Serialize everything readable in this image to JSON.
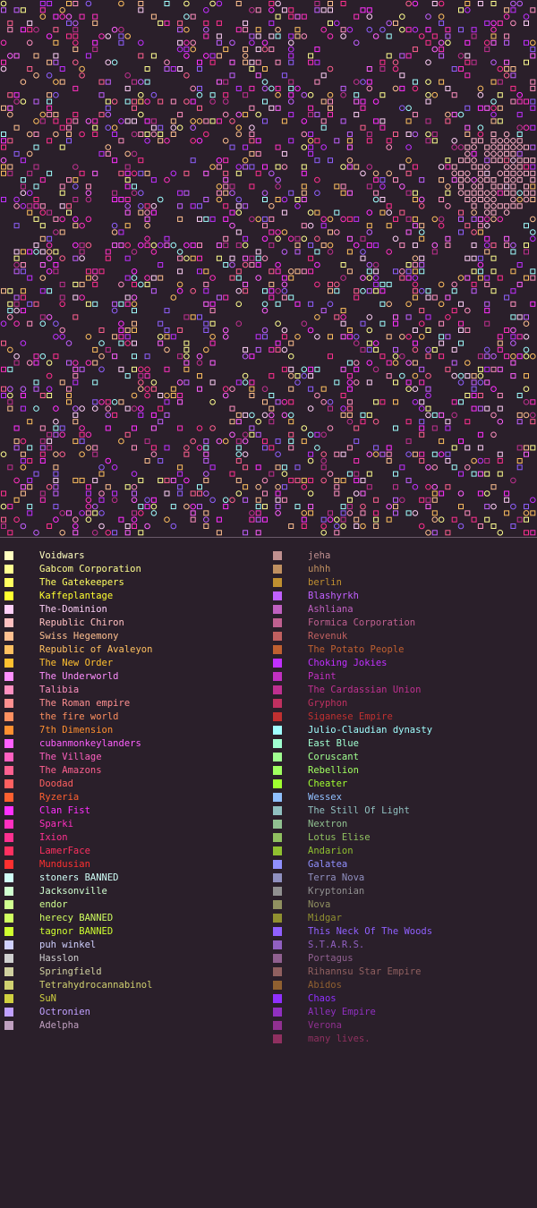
{
  "map": {
    "background": "#2a1f2a",
    "empty_hint_note": ""
  },
  "legend": {
    "left": [
      {
        "name": "Voidwars",
        "color": "#ffffc0"
      },
      {
        "name": "Gabcom Corporation",
        "color": "#ffff90"
      },
      {
        "name": "The Gatekeepers",
        "color": "#ffff60"
      },
      {
        "name": "Kaffeplantage",
        "color": "#ffff30"
      },
      {
        "name": "The-Dominion",
        "color": "#ffd0f8"
      },
      {
        "name": "Republic Chiron",
        "color": "#ffc0c0"
      },
      {
        "name": "Swiss Hegemony",
        "color": "#ffc090"
      },
      {
        "name": "Republic of Avaleyon",
        "color": "#ffc060"
      },
      {
        "name": "The New Order",
        "color": "#ffc030"
      },
      {
        "name": "The Underworld",
        "color": "#ff90ff"
      },
      {
        "name": "Talibia",
        "color": "#ff90c0"
      },
      {
        "name": "The Roman empire",
        "color": "#ff9090"
      },
      {
        "name": "the fire world",
        "color": "#ff9060"
      },
      {
        "name": "7th Dimension",
        "color": "#ff9030"
      },
      {
        "name": "cubanmonkeylanders",
        "color": "#ff60ff"
      },
      {
        "name": "The Village",
        "color": "#ff60c0"
      },
      {
        "name": "The Amazons",
        "color": "#ff6090"
      },
      {
        "name": "Doodad",
        "color": "#ff6060"
      },
      {
        "name": "Ryzeria",
        "color": "#ff6030"
      },
      {
        "name": "Clan Fist",
        "color": "#ff30ff"
      },
      {
        "name": "Sparki",
        "color": "#ff30c0"
      },
      {
        "name": "Ixion",
        "color": "#ff3090"
      },
      {
        "name": "LamerFace",
        "color": "#ff3060"
      },
      {
        "name": "Mundusian",
        "color": "#ff3030"
      },
      {
        "name": "stoners BANNED",
        "color": "#d0fff8"
      },
      {
        "name": "Jacksonville",
        "color": "#d0ffd0"
      },
      {
        "name": "endor",
        "color": "#d0ff90"
      },
      {
        "name": "herecy BANNED",
        "color": "#d0ff60"
      },
      {
        "name": "tagnor BANNED",
        "color": "#d0ff30"
      },
      {
        "name": "puh winkel",
        "color": "#d0d0ff"
      },
      {
        "name": "Hasslon",
        "color": "#d0d0d0"
      },
      {
        "name": "Springfield",
        "color": "#d0d0a0"
      },
      {
        "name": "Tetrahydrocannabinol",
        "color": "#d0d070"
      },
      {
        "name": "SuN",
        "color": "#d0d040"
      },
      {
        "name": "Octronien",
        "color": "#c0a0ff"
      },
      {
        "name": "Adelpha",
        "color": "#c0a0c0"
      }
    ],
    "right": [
      {
        "name": "jeha",
        "color": "#c09090"
      },
      {
        "name": "uhhh",
        "color": "#c09060"
      },
      {
        "name": "berlin",
        "color": "#c09030"
      },
      {
        "name": "Blashyrkh",
        "color": "#c060ff"
      },
      {
        "name": "Ashliana",
        "color": "#c060c0"
      },
      {
        "name": "Formica Corporation",
        "color": "#c06090"
      },
      {
        "name": "Revenuk",
        "color": "#c06060"
      },
      {
        "name": "The Potato People",
        "color": "#c06030"
      },
      {
        "name": "Choking Jokies",
        "color": "#c030ff"
      },
      {
        "name": "Paint",
        "color": "#c030c0"
      },
      {
        "name": "The Cardassian Union",
        "color": "#c03090"
      },
      {
        "name": "Gryphon",
        "color": "#c03060"
      },
      {
        "name": "Siganese Empire",
        "color": "#c03030"
      },
      {
        "name": "Julio-Claudian dynasty",
        "color": "#a0ffff"
      },
      {
        "name": "East Blue",
        "color": "#a0ffd0"
      },
      {
        "name": "Coruscant",
        "color": "#a0ff90"
      },
      {
        "name": "Rebellion",
        "color": "#a0ff60"
      },
      {
        "name": "Cheater",
        "color": "#a0ff30"
      },
      {
        "name": "Wessex",
        "color": "#90c0ff"
      },
      {
        "name": "The Still Of Light",
        "color": "#90c0c0"
      },
      {
        "name": "Nextron",
        "color": "#90c090"
      },
      {
        "name": "Lotus Elise",
        "color": "#90c060"
      },
      {
        "name": "Andarion",
        "color": "#90c030"
      },
      {
        "name": "Galatea",
        "color": "#9090ff"
      },
      {
        "name": "Terra Nova",
        "color": "#9090c0"
      },
      {
        "name": "Kryptonian",
        "color": "#909090"
      },
      {
        "name": "Nova",
        "color": "#909060"
      },
      {
        "name": "Midgar",
        "color": "#909030"
      },
      {
        "name": "This Neck Of The Woods",
        "color": "#9060ff"
      },
      {
        "name": "S.T.A.R.S.",
        "color": "#9060c0"
      },
      {
        "name": "Portagus",
        "color": "#906090"
      },
      {
        "name": "Rihannsu Star Empire",
        "color": "#906060"
      },
      {
        "name": "Abidos",
        "color": "#906030"
      },
      {
        "name": "Chaos",
        "color": "#9030ff"
      },
      {
        "name": "Alley Empire",
        "color": "#9030c0"
      },
      {
        "name": "Verona",
        "color": "#903090"
      },
      {
        "name": "many lives.",
        "color": "#903060"
      }
    ]
  }
}
